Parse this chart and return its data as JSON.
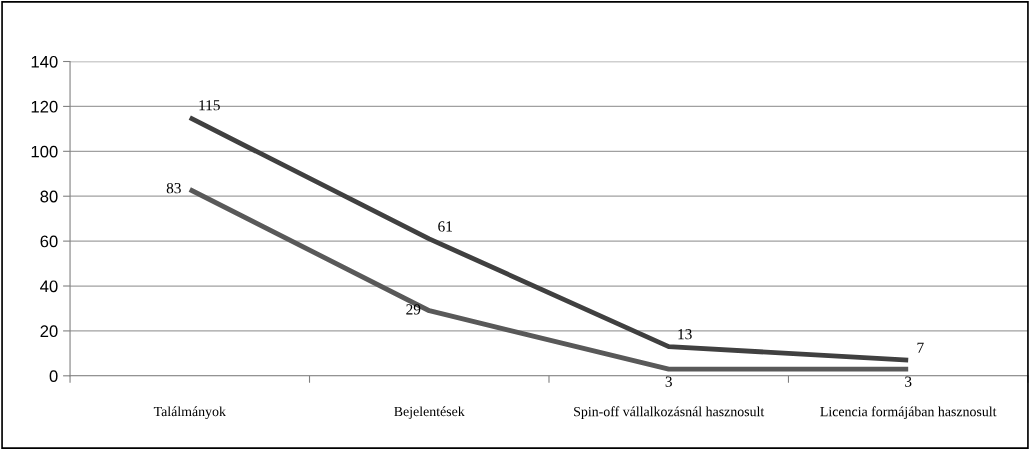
{
  "chart_data": {
    "type": "line",
    "categories": [
      "Találmányok",
      "Bejelentések",
      "Spin-off vállalkozásnál hasznosult",
      "Licencia formájában hasznosult"
    ],
    "series": [
      {
        "color": "#404040",
        "values": [
          115,
          61,
          13,
          7
        ]
      },
      {
        "color": "#595959",
        "values": [
          83,
          29,
          3,
          3
        ]
      }
    ],
    "ylim": [
      0,
      140
    ],
    "yticks": [
      0,
      20,
      40,
      60,
      80,
      100,
      120,
      140
    ],
    "grid": "y",
    "legend": false,
    "marker": "none",
    "line_style": "solid",
    "data_labels": true
  }
}
